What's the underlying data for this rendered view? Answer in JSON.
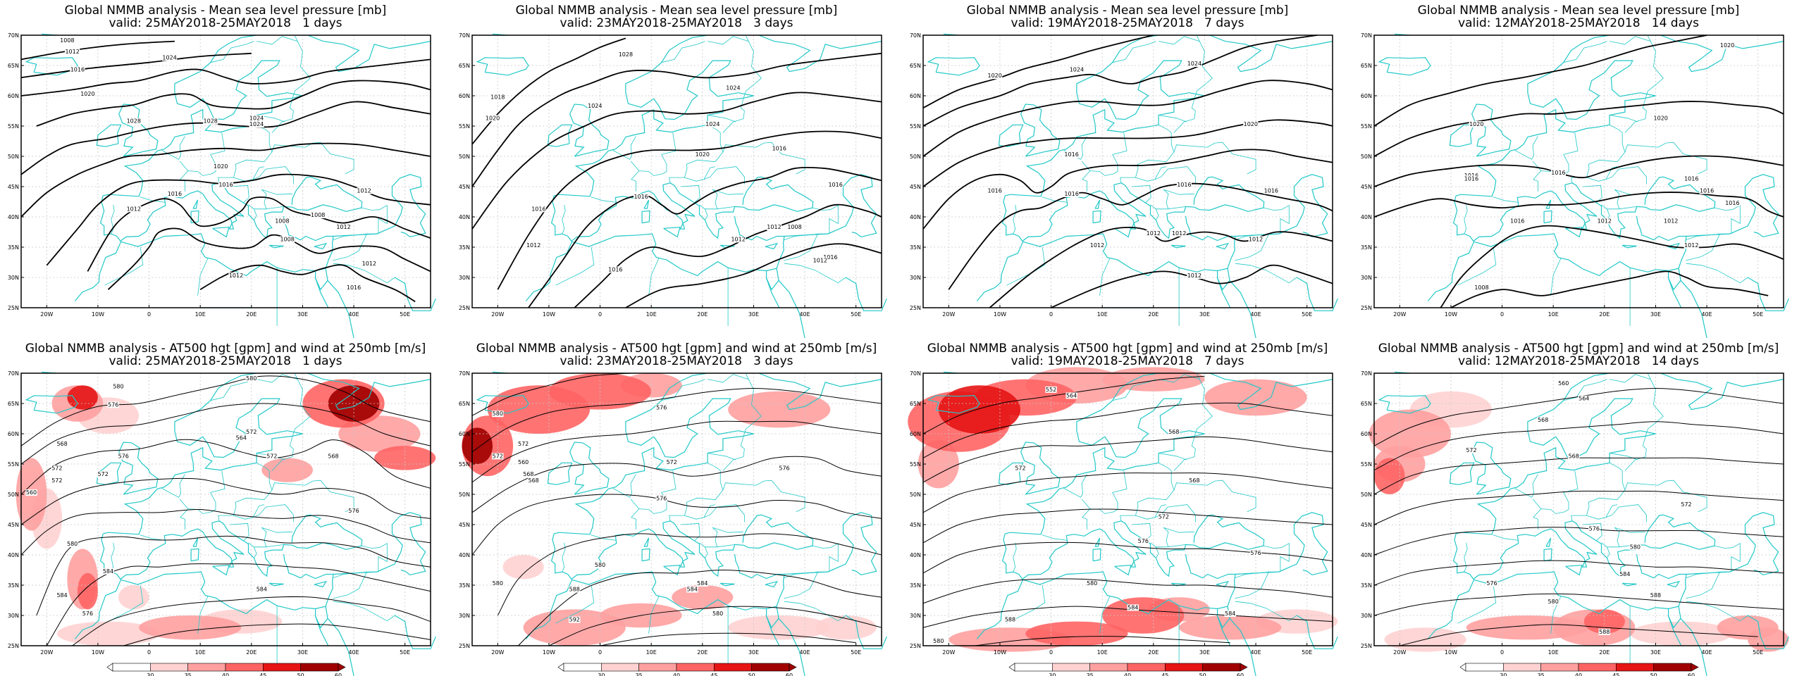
{
  "top_title": "Global NMMB analysis - Mean sea level pressure [mb]",
  "bottom_title": "Global NMMB analysis - AT500 hgt [gpm] and wind at 250mb [m/s]",
  "panels": [
    {
      "valid": "valid: 25MAY2018-25MAY2018   1 days"
    },
    {
      "valid": "valid: 23MAY2018-25MAY2018   3 days"
    },
    {
      "valid": "valid: 19MAY2018-25MAY2018   7 days"
    },
    {
      "valid": "valid: 12MAY2018-25MAY2018   14 days"
    }
  ],
  "lat_labels": [
    "70N",
    "65N",
    "60N",
    "55N",
    "50N",
    "45N",
    "40N",
    "35N",
    "30N",
    "25N"
  ],
  "lon_labels": [
    "20W",
    "10W",
    "0",
    "10E",
    "20E",
    "30E",
    "40E",
    "50E"
  ],
  "colorbar": {
    "ticks": [
      "30",
      "35",
      "40",
      "45",
      "50",
      "60"
    ]
  },
  "colors": {
    "coast": "#22c8c8",
    "contour": "#000000",
    "wind": [
      "#ffffff",
      "#ffd2d2",
      "#ffa0a0",
      "#ff6464",
      "#e61414",
      "#a00000"
    ]
  },
  "mslp_labels": [
    [
      "1008",
      "1012",
      "1016",
      "1020",
      "1024",
      "1028",
      "1028",
      "1024",
      "1024",
      "1020",
      "1016",
      "1016",
      "1012",
      "1012",
      "1012",
      "1008",
      "1008",
      "1008",
      "1012",
      "1012",
      "1016"
    ],
    [
      "1018",
      "1020",
      "1028",
      "1024",
      "1024",
      "1024",
      "1020",
      "1016",
      "1016",
      "1016",
      "1016",
      "1012",
      "1012",
      "1012",
      "1016",
      "1016",
      "1008",
      "1012"
    ],
    [
      "1024",
      "1024",
      "1020",
      "1020",
      "1016",
      "1016",
      "1016",
      "1016",
      "1016",
      "1012",
      "1012",
      "1012",
      "1012",
      "1012"
    ],
    [
      "1020",
      "1020",
      "1020",
      "1016",
      "1016",
      "1016",
      "1016",
      "1016",
      "1012",
      "1012",
      "1016",
      "1012",
      "1008",
      "1016"
    ]
  ],
  "hgt_labels": [
    [
      "580",
      "580",
      "576",
      "568",
      "572",
      "576",
      "572",
      "572",
      "572",
      "568",
      "564",
      "572",
      "560",
      "576",
      "580",
      "584",
      "584",
      "576",
      "584"
    ],
    [
      "580",
      "576",
      "572",
      "568",
      "572",
      "560",
      "568",
      "572",
      "576",
      "576",
      "580",
      "580",
      "584",
      "588",
      "592",
      "580",
      "584"
    ],
    [
      "552",
      "564",
      "568",
      "572",
      "568",
      "572",
      "576",
      "580",
      "584",
      "588",
      "580",
      "576",
      "584"
    ],
    [
      "560",
      "564",
      "568",
      "572",
      "568",
      "572",
      "576",
      "580",
      "584",
      "588",
      "580",
      "576",
      "588"
    ]
  ]
}
